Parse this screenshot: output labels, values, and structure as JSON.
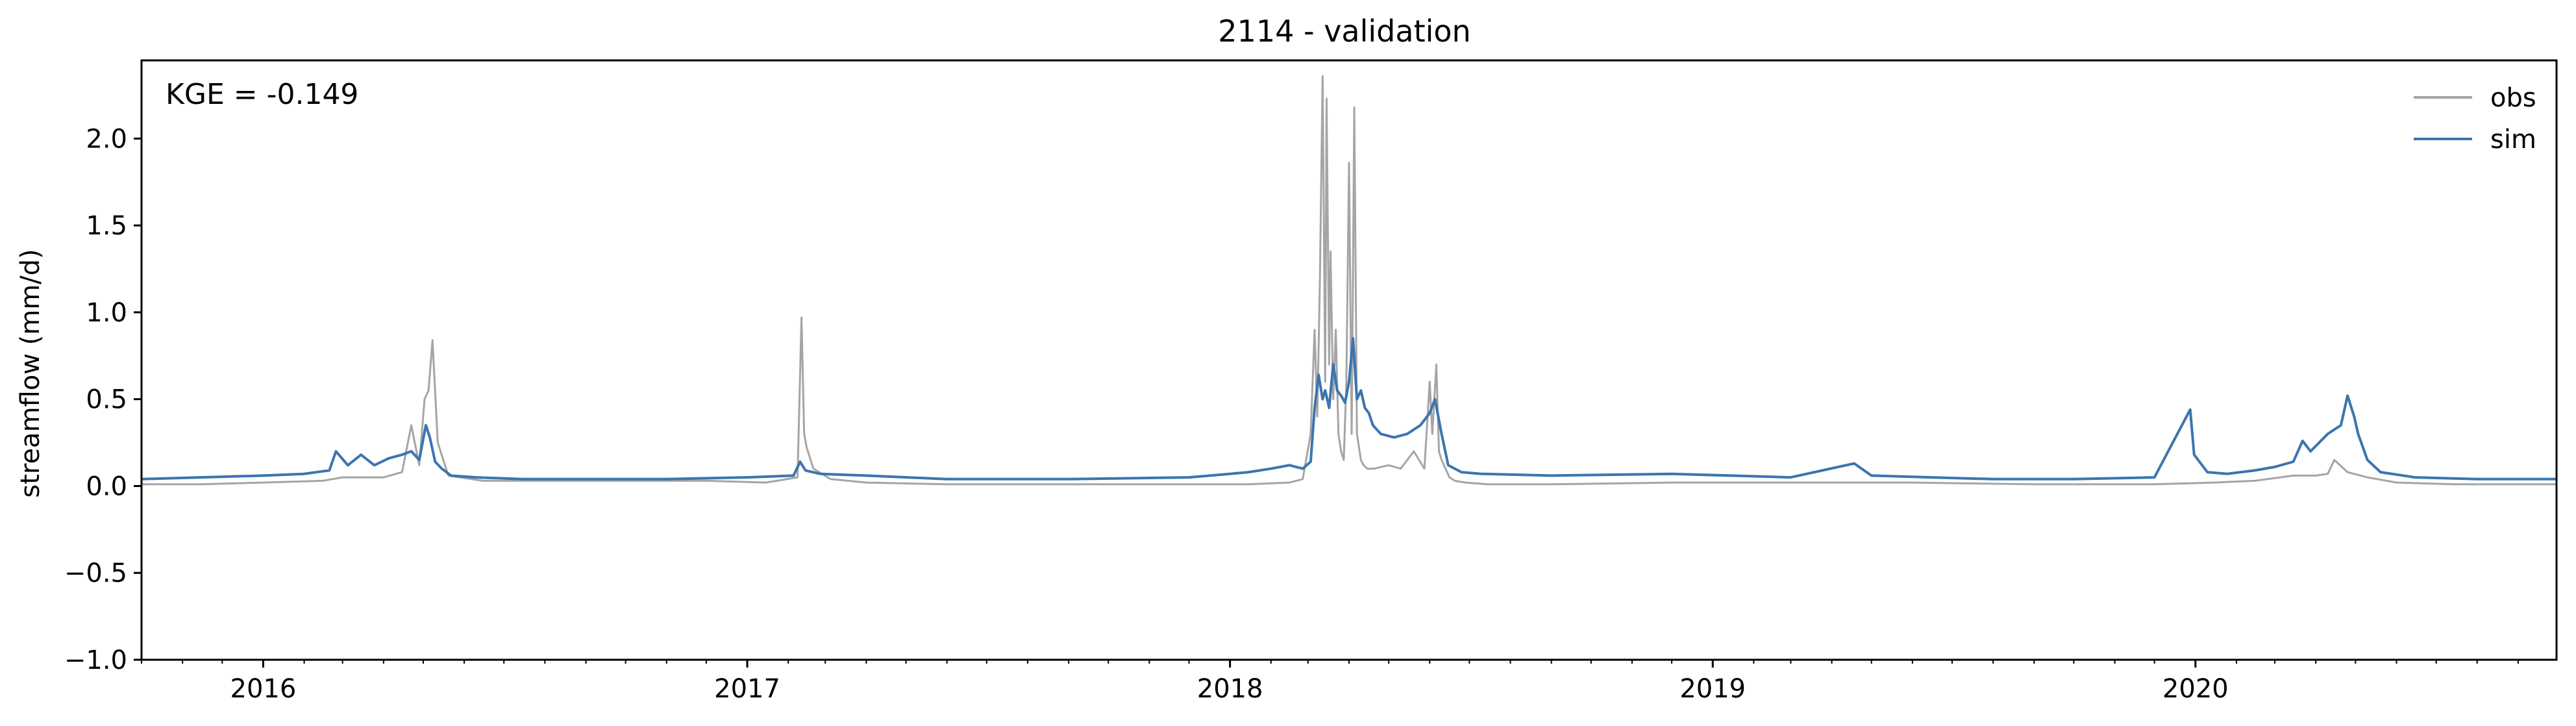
{
  "chart_data": {
    "type": "line",
    "title": "2114 - validation",
    "ylabel": "streamflow (mm/d)",
    "xlabel": "",
    "annotation": "KGE = -0.149",
    "xlim": [
      "2015-10-01",
      "2020-09-30"
    ],
    "ylim": [
      -1.0,
      2.45
    ],
    "yticks": [
      -1.0,
      -0.5,
      0.0,
      0.5,
      1.0,
      1.5,
      2.0
    ],
    "ytick_labels": [
      "−1.0",
      "−0.5",
      "0.0",
      "0.5",
      "1.0",
      "1.5",
      "2.0"
    ],
    "xtick_labels": [
      "2016",
      "2017",
      "2018",
      "2019",
      "2020"
    ],
    "legend": {
      "placement": "top-right",
      "frame": false
    },
    "grid": false,
    "series": [
      {
        "name": "obs",
        "color": "#a5a5a5",
        "x": [
          "2015-10-01",
          "2015-11-15",
          "2016-01-01",
          "2016-02-15",
          "2016-03-01",
          "2016-04-01",
          "2016-04-15",
          "2016-04-22",
          "2016-04-28",
          "2016-05-02",
          "2016-05-05",
          "2016-05-08",
          "2016-05-12",
          "2016-05-20",
          "2016-06-15",
          "2016-08-01",
          "2016-10-01",
          "2016-12-01",
          "2017-01-15",
          "2017-02-08",
          "2017-02-11",
          "2017-02-13",
          "2017-02-15",
          "2017-02-20",
          "2017-03-05",
          "2017-04-01",
          "2017-06-01",
          "2017-09-01",
          "2017-12-01",
          "2018-01-15",
          "2018-02-15",
          "2018-02-25",
          "2018-03-03",
          "2018-03-06",
          "2018-03-08",
          "2018-03-10",
          "2018-03-12",
          "2018-03-14",
          "2018-03-15",
          "2018-03-17",
          "2018-03-18",
          "2018-03-20",
          "2018-03-22",
          "2018-03-24",
          "2018-03-26",
          "2018-03-28",
          "2018-03-30",
          "2018-04-01",
          "2018-04-03",
          "2018-04-05",
          "2018-04-07",
          "2018-04-09",
          "2018-04-10",
          "2018-04-12",
          "2018-04-15",
          "2018-04-20",
          "2018-05-01",
          "2018-05-10",
          "2018-05-20",
          "2018-05-28",
          "2018-06-01",
          "2018-06-03",
          "2018-06-06",
          "2018-06-08",
          "2018-06-10",
          "2018-06-13",
          "2018-06-16",
          "2018-06-20",
          "2018-06-28",
          "2018-07-15",
          "2018-09-01",
          "2018-12-01",
          "2019-03-01",
          "2019-06-01",
          "2019-09-01",
          "2019-12-01",
          "2020-01-15",
          "2020-02-15",
          "2020-03-15",
          "2020-04-01",
          "2020-04-10",
          "2020-04-15",
          "2020-04-25",
          "2020-05-10",
          "2020-06-01",
          "2020-07-15",
          "2020-09-30"
        ],
        "values": [
          0.01,
          0.01,
          0.02,
          0.03,
          0.05,
          0.05,
          0.08,
          0.35,
          0.12,
          0.5,
          0.55,
          0.84,
          0.25,
          0.06,
          0.03,
          0.03,
          0.03,
          0.03,
          0.02,
          0.05,
          0.97,
          0.3,
          0.22,
          0.1,
          0.04,
          0.02,
          0.01,
          0.01,
          0.01,
          0.01,
          0.02,
          0.04,
          0.3,
          0.9,
          0.4,
          1.2,
          2.36,
          0.6,
          2.23,
          0.7,
          1.35,
          0.5,
          0.9,
          0.3,
          0.2,
          0.15,
          0.6,
          1.86,
          0.3,
          2.18,
          0.3,
          0.2,
          0.15,
          0.12,
          0.1,
          0.1,
          0.12,
          0.1,
          0.2,
          0.1,
          0.6,
          0.3,
          0.7,
          0.2,
          0.15,
          0.1,
          0.05,
          0.03,
          0.02,
          0.01,
          0.01,
          0.02,
          0.02,
          0.02,
          0.01,
          0.01,
          0.02,
          0.03,
          0.06,
          0.06,
          0.07,
          0.15,
          0.08,
          0.05,
          0.02,
          0.01,
          0.01
        ]
      },
      {
        "name": "sim",
        "color": "#3b75af",
        "x": [
          "2015-10-01",
          "2015-11-15",
          "2016-01-01",
          "2016-02-01",
          "2016-02-20",
          "2016-02-25",
          "2016-03-05",
          "2016-03-15",
          "2016-03-25",
          "2016-04-05",
          "2016-04-15",
          "2016-04-22",
          "2016-04-28",
          "2016-05-03",
          "2016-05-06",
          "2016-05-10",
          "2016-05-15",
          "2016-05-22",
          "2016-06-10",
          "2016-07-15",
          "2016-09-01",
          "2016-11-01",
          "2017-01-01",
          "2017-02-05",
          "2017-02-10",
          "2017-02-14",
          "2017-02-25",
          "2017-04-01",
          "2017-06-01",
          "2017-09-01",
          "2017-12-01",
          "2018-01-01",
          "2018-01-15",
          "2018-02-01",
          "2018-02-15",
          "2018-02-25",
          "2018-03-03",
          "2018-03-06",
          "2018-03-09",
          "2018-03-12",
          "2018-03-14",
          "2018-03-17",
          "2018-03-20",
          "2018-03-23",
          "2018-03-26",
          "2018-03-29",
          "2018-04-01",
          "2018-04-04",
          "2018-04-07",
          "2018-04-10",
          "2018-04-13",
          "2018-04-16",
          "2018-04-19",
          "2018-04-25",
          "2018-05-05",
          "2018-05-15",
          "2018-05-25",
          "2018-06-01",
          "2018-06-05",
          "2018-06-10",
          "2018-06-15",
          "2018-06-25",
          "2018-07-10",
          "2018-09-01",
          "2018-12-01",
          "2019-03-01",
          "2019-04-18",
          "2019-05-01",
          "2019-06-15",
          "2019-08-01",
          "2019-10-01",
          "2019-12-01",
          "2019-12-28",
          "2019-12-31",
          "2020-01-10",
          "2020-01-25",
          "2020-02-15",
          "2020-03-01",
          "2020-03-15",
          "2020-03-22",
          "2020-03-28",
          "2020-04-10",
          "2020-04-20",
          "2020-04-25",
          "2020-04-30",
          "2020-05-03",
          "2020-05-10",
          "2020-05-20",
          "2020-06-15",
          "2020-08-01",
          "2020-09-30"
        ],
        "values": [
          0.04,
          0.05,
          0.06,
          0.07,
          0.09,
          0.2,
          0.12,
          0.18,
          0.12,
          0.16,
          0.18,
          0.2,
          0.15,
          0.35,
          0.28,
          0.14,
          0.1,
          0.06,
          0.05,
          0.04,
          0.04,
          0.04,
          0.05,
          0.06,
          0.14,
          0.09,
          0.07,
          0.06,
          0.04,
          0.04,
          0.05,
          0.07,
          0.08,
          0.1,
          0.12,
          0.1,
          0.14,
          0.45,
          0.64,
          0.5,
          0.55,
          0.45,
          0.7,
          0.55,
          0.52,
          0.48,
          0.6,
          0.85,
          0.5,
          0.55,
          0.45,
          0.42,
          0.35,
          0.3,
          0.28,
          0.3,
          0.35,
          0.42,
          0.5,
          0.3,
          0.12,
          0.08,
          0.07,
          0.06,
          0.07,
          0.05,
          0.13,
          0.06,
          0.05,
          0.04,
          0.04,
          0.05,
          0.44,
          0.18,
          0.08,
          0.07,
          0.09,
          0.11,
          0.14,
          0.26,
          0.2,
          0.3,
          0.35,
          0.52,
          0.4,
          0.3,
          0.15,
          0.08,
          0.05,
          0.04,
          0.04
        ]
      }
    ]
  }
}
